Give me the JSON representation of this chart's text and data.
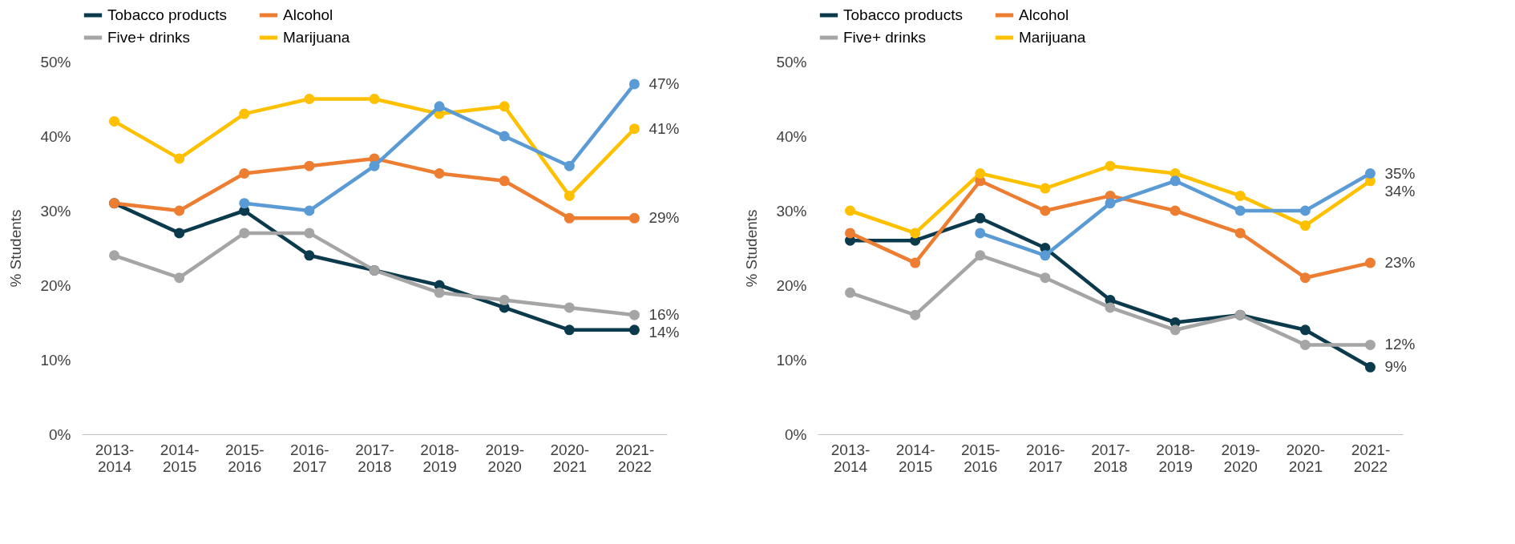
{
  "chart_data": [
    {
      "type": "line",
      "ylabel": "% Students",
      "categories": [
        "2013-2014",
        "2014-2015",
        "2015-2016",
        "2016-2017",
        "2017-2018",
        "2018-2019",
        "2019-2020",
        "2020-2021",
        "2021-2022"
      ],
      "ylim": [
        0,
        50
      ],
      "yticks": [
        {
          "value": 0,
          "label": "0%"
        },
        {
          "value": 10,
          "label": "10%"
        },
        {
          "value": 20,
          "label": "20%"
        },
        {
          "value": 30,
          "label": "30%"
        },
        {
          "value": 40,
          "label": "40%"
        },
        {
          "value": 50,
          "label": "50%"
        }
      ],
      "grid": false,
      "legend": "top",
      "marker": "circle",
      "line_style": "solid",
      "series": [
        {
          "name": "Tobacco products",
          "color": "#0b3a4d",
          "values": [
            31,
            27,
            30,
            24,
            22,
            20,
            17,
            14,
            14
          ],
          "value_labels": [
            null,
            null,
            null,
            null,
            null,
            null,
            null,
            null,
            "14%"
          ]
        },
        {
          "name": "Alcohol",
          "color": "#ed7d31",
          "values": [
            31,
            30,
            35,
            36,
            37,
            35,
            34,
            29,
            29
          ],
          "value_labels": [
            null,
            null,
            null,
            null,
            null,
            null,
            null,
            null,
            "29%"
          ]
        },
        {
          "name": "Five+ drinks",
          "color": "#a5a5a5",
          "values": [
            24,
            21,
            27,
            27,
            22,
            19,
            18,
            17,
            16
          ],
          "value_labels": [
            null,
            null,
            null,
            null,
            null,
            null,
            null,
            null,
            "16%"
          ]
        },
        {
          "name": "Marijuana",
          "color": "#ffc000",
          "values": [
            42,
            37,
            43,
            45,
            45,
            43,
            44,
            32,
            41
          ],
          "value_labels": [
            null,
            null,
            null,
            null,
            null,
            null,
            null,
            null,
            "41%"
          ]
        },
        {
          "color": "#5b9bd5",
          "values": [
            null,
            null,
            31,
            30,
            36,
            44,
            40,
            36,
            47
          ],
          "value_labels": [
            null,
            null,
            null,
            null,
            null,
            null,
            null,
            null,
            "47%"
          ]
        }
      ]
    },
    {
      "type": "line",
      "ylabel": "% Students",
      "categories": [
        "2013-2014",
        "2014-2015",
        "2015-2016",
        "2016-2017",
        "2017-2018",
        "2018-2019",
        "2019-2020",
        "2020-2021",
        "2021-2022"
      ],
      "ylim": [
        0,
        50
      ],
      "yticks": [
        {
          "value": 0,
          "label": "0%"
        },
        {
          "value": 10,
          "label": "10%"
        },
        {
          "value": 20,
          "label": "20%"
        },
        {
          "value": 30,
          "label": "30%"
        },
        {
          "value": 40,
          "label": "40%"
        },
        {
          "value": 50,
          "label": "50%"
        }
      ],
      "grid": false,
      "legend": "top",
      "marker": "circle",
      "line_style": "solid",
      "series": [
        {
          "name": "Tobacco products",
          "color": "#0b3a4d",
          "values": [
            26,
            26,
            29,
            25,
            18,
            15,
            16,
            14,
            9
          ],
          "value_labels": [
            null,
            null,
            null,
            null,
            null,
            null,
            null,
            null,
            "9%"
          ]
        },
        {
          "name": "Alcohol",
          "color": "#ed7d31",
          "values": [
            27,
            23,
            34,
            30,
            32,
            30,
            27,
            21,
            23
          ],
          "value_labels": [
            null,
            null,
            null,
            null,
            null,
            null,
            null,
            null,
            "23%"
          ]
        },
        {
          "name": "Five+ drinks",
          "color": "#a5a5a5",
          "values": [
            19,
            16,
            24,
            21,
            17,
            14,
            16,
            12,
            12
          ],
          "value_labels": [
            null,
            null,
            null,
            null,
            null,
            null,
            null,
            null,
            "12%"
          ]
        },
        {
          "name": "Marijuana",
          "color": "#ffc000",
          "values": [
            30,
            27,
            35,
            33,
            36,
            35,
            32,
            28,
            34
          ],
          "value_labels": [
            null,
            null,
            null,
            null,
            null,
            null,
            null,
            null,
            "34%"
          ]
        },
        {
          "color": "#5b9bd5",
          "values": [
            null,
            null,
            27,
            24,
            31,
            34,
            30,
            30,
            35
          ],
          "value_labels": [
            null,
            null,
            null,
            null,
            null,
            null,
            null,
            null,
            "35%"
          ]
        }
      ]
    }
  ]
}
